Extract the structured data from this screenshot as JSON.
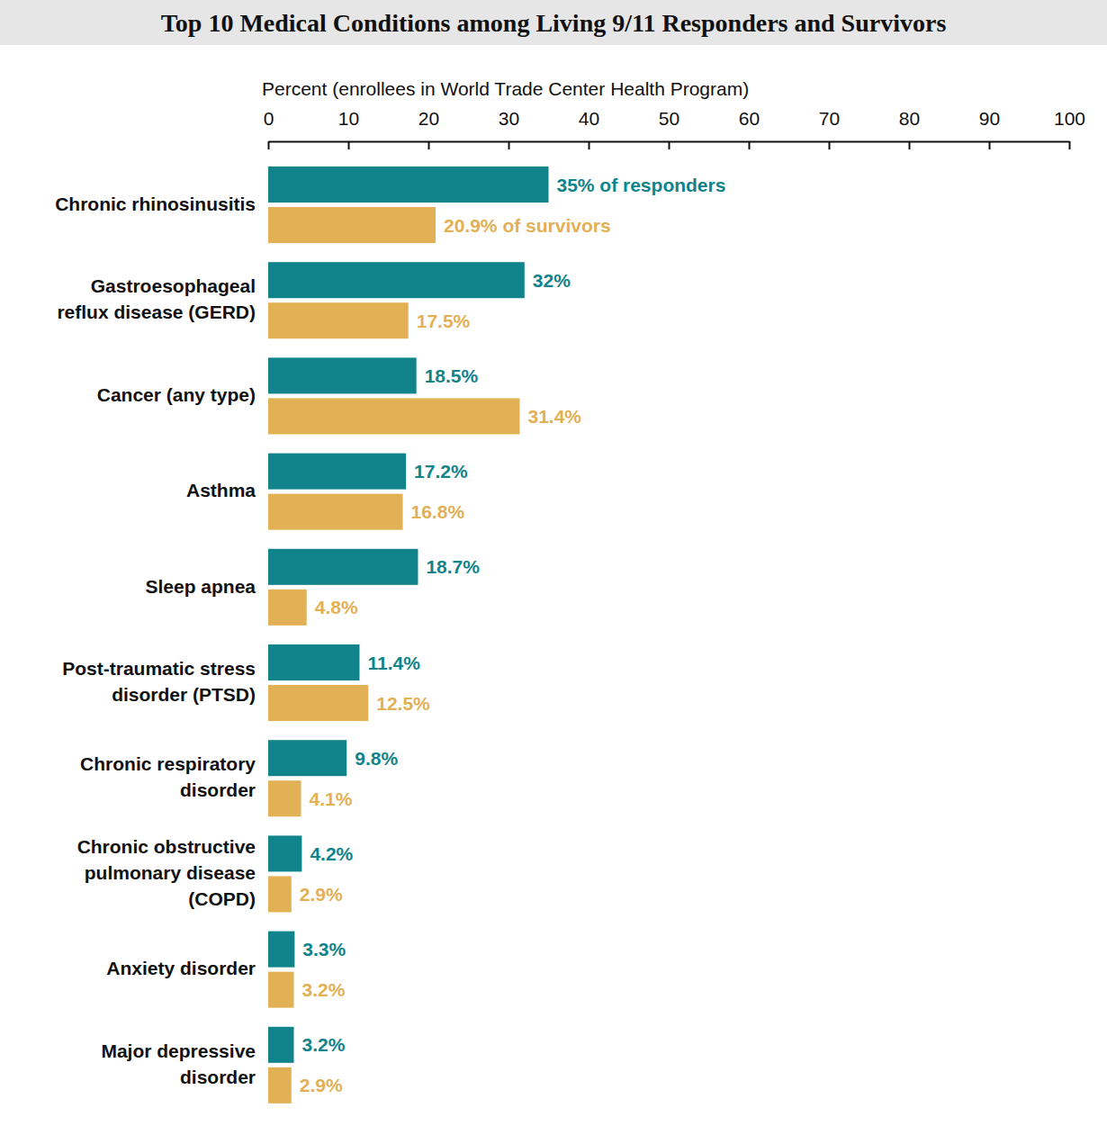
{
  "chart_data": {
    "type": "bar",
    "orientation": "horizontal",
    "title": "Top 10 Medical Conditions among Living 9/11 Responders and Survivors",
    "x_label": "Percent (enrollees in World Trade Center Health Program)",
    "categories": [
      "Chronic rhinosinusitis",
      "Gastroesophageal\nreflux disease (GERD)",
      "Cancer (any type)",
      "Asthma",
      "Sleep apnea",
      "Post-traumatic stress\ndisorder (PTSD)",
      "Chronic respiratory\ndisorder",
      "Chronic obstructive\npulmonary disease\n(COPD)",
      "Anxiety disorder",
      "Major depressive\ndisorder"
    ],
    "series": [
      {
        "color": "#11838a",
        "values": [
          35,
          32,
          18.5,
          17.2,
          18.7,
          11.4,
          9.8,
          4.2,
          3.3,
          3.2
        ],
        "value_labels": [
          "35% of responders",
          "32%",
          "18.5%",
          "17.2%",
          "18.7%",
          "11.4%",
          "9.8%",
          "4.2%",
          "3.3%",
          "3.2%"
        ]
      },
      {
        "color": "#e2b055",
        "values": [
          20.9,
          17.5,
          31.4,
          16.8,
          4.8,
          12.5,
          4.1,
          2.9,
          3.2,
          2.9
        ],
        "value_labels": [
          "20.9% of survivors",
          "17.5%",
          "31.4%",
          "16.8%",
          "4.8%",
          "12.5%",
          "4.1%",
          "2.9%",
          "3.2%",
          "2.9%"
        ]
      }
    ],
    "xlim": [
      0,
      100
    ],
    "xticks": [
      0,
      10,
      20,
      30,
      40,
      50,
      60,
      70,
      80,
      90,
      100
    ],
    "data_labels": true,
    "grid": false
  }
}
